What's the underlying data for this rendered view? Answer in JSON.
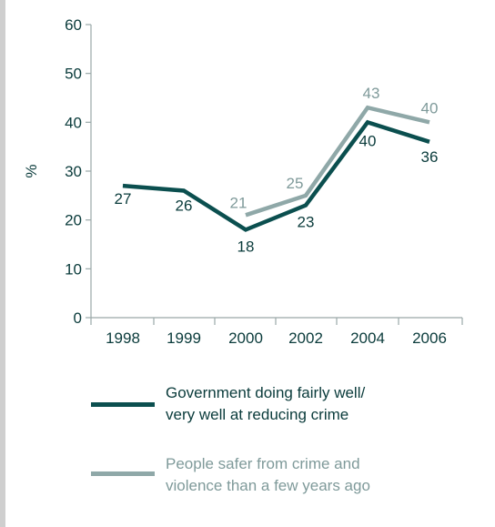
{
  "chart_data": {
    "type": "line",
    "title": "",
    "xlabel": "",
    "ylabel": "%",
    "ylim": [
      0,
      60
    ],
    "yticks": [
      0,
      10,
      20,
      30,
      40,
      50,
      60
    ],
    "categories": [
      "1998",
      "1999",
      "2000",
      "2002",
      "2004",
      "2006"
    ],
    "grid": false,
    "legend_position": "bottom",
    "series": [
      {
        "name": "Government doing  fairly well/ very well at reducing crime",
        "legend_lines": [
          "Government doing  fairly well/",
          "very well at reducing crime"
        ],
        "values": [
          27,
          26,
          18,
          23,
          40,
          36
        ],
        "labels": [
          "27",
          "26",
          "18",
          "23",
          "40",
          "36"
        ],
        "color": "#0b4f4f"
      },
      {
        "name": "People safer from crime and violence than a few years ago",
        "legend_lines": [
          "People safer from crime and",
          "violence than a few years ago"
        ],
        "values": [
          null,
          null,
          21,
          25,
          43,
          40
        ],
        "labels": [
          "",
          "",
          "21",
          "25",
          "43",
          "40"
        ],
        "color": "#8fa8a8"
      }
    ]
  }
}
